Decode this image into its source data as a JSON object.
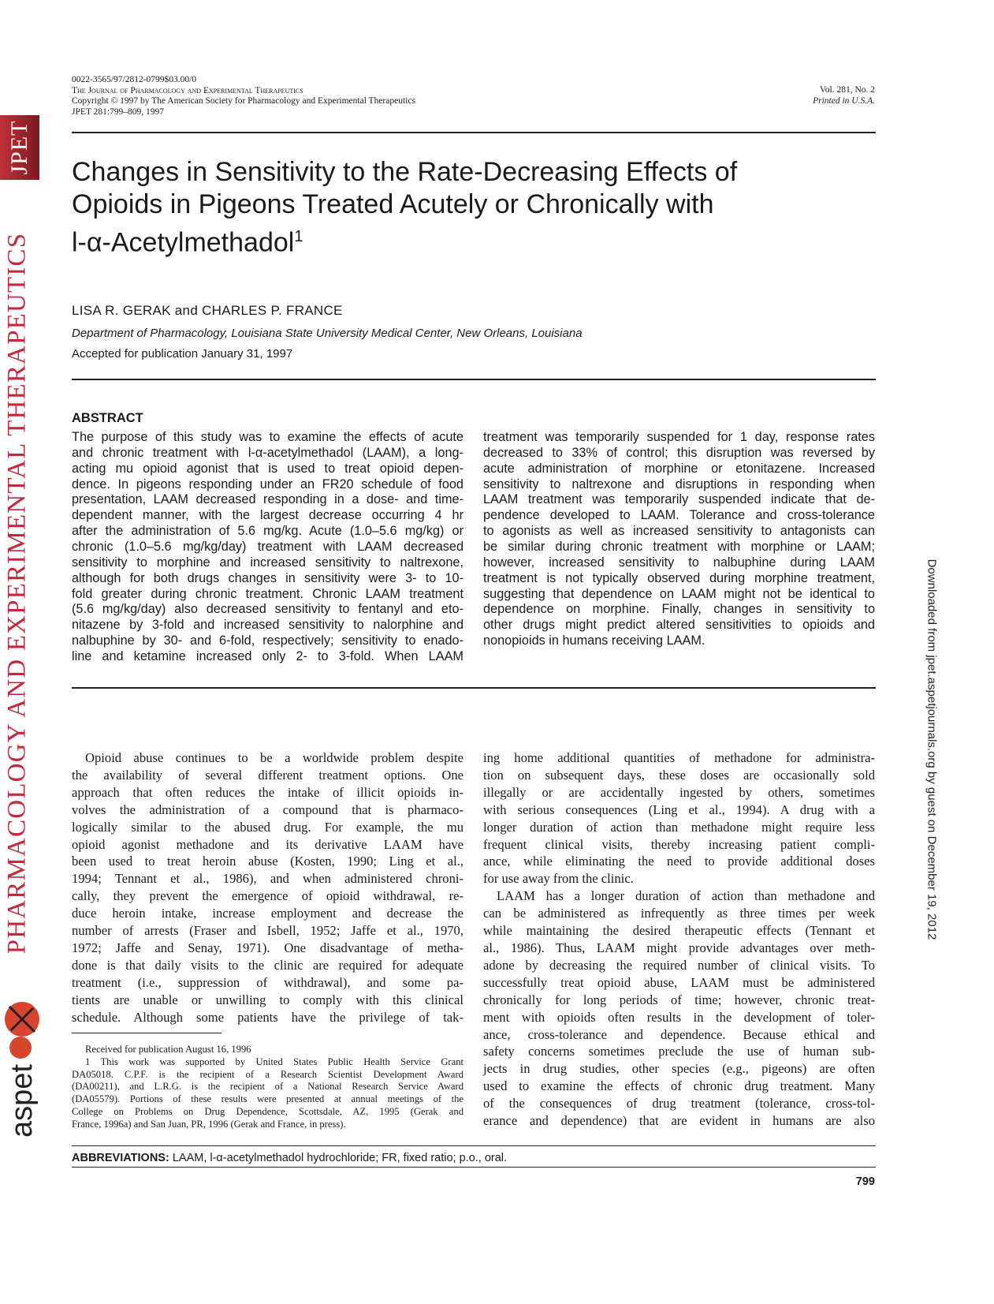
{
  "header": {
    "left_lines": [
      "0022-3565/97/2812-0799$03.00/0",
      "The Journal of Pharmacology and Experimental Therapeutics",
      "Copyright © 1997 by The American Society for Pharmacology and Experimental Therapeutics",
      "JPET 281:799–809, 1997"
    ],
    "volume": "Vol. 281, No. 2",
    "printed": "Printed in U.S.A."
  },
  "sidebar": {
    "jpet_logo": "JPET",
    "journal_name": "PHARMACOLOGY AND EXPERIMENTAL THERAPEUTICS",
    "publisher_logo": "aspet",
    "accent_color": "#c3283d"
  },
  "download_note": "Downloaded from jpet.aspetjournals.org by guest on December 19, 2012",
  "article": {
    "title_lines": [
      "Changes in Sensitivity to the Rate-Decreasing Effects of",
      "Opioids in Pigeons Treated Acutely or Chronically with",
      "l-α-Acetylmethadol"
    ],
    "title_footnote_mark": "1",
    "authors": "LISA R. GERAK and CHARLES P. FRANCE",
    "affiliation": "Department of Pharmacology, Louisiana State University Medical Center, New Orleans, Louisiana",
    "accepted": "Accepted for publication January 31, 1997"
  },
  "abstract": {
    "heading": "ABSTRACT",
    "columns": [
      {
        "continued": false,
        "paragraphs": [
          [
            "The purpose of this study was to examine the effects of acute",
            "and chronic treatment with l-α-acetylmethadol (LAAM), a long-",
            "acting mu opioid agonist that is used to treat opioid depen-",
            "dence. In pigeons responding under an FR20 schedule of food",
            "presentation, LAAM decreased responding in a dose- and time-",
            "dependent manner, with the largest decrease occurring 4 hr",
            "after the administration of 5.6 mg/kg. Acute (1.0–5.6 mg/kg) or",
            "chronic (1.0–5.6 mg/kg/day) treatment with LAAM decreased",
            "sensitivity to morphine and increased sensitivity to naltrexone,",
            "although for both drugs changes in sensitivity were 3- to 10-",
            "fold greater during chronic treatment. Chronic LAAM treatment",
            "(5.6 mg/kg/day) also decreased sensitivity to fentanyl and eto-",
            "nitazene by 3-fold and increased sensitivity to nalorphine and",
            "nalbuphine by 30- and 6-fold, respectively; sensitivity to enado-",
            "line and ketamine increased only 2- to 3-fold. When LAAM"
          ]
        ],
        "ends_mid_paragraph": true
      },
      {
        "continued": true,
        "paragraphs": [
          [
            "treatment was temporarily suspended for 1 day, response rates",
            "decreased to 33% of control; this disruption was reversed by",
            "acute administration of morphine or etonitazene. Increased",
            "sensitivity to naltrexone and disruptions in responding when",
            "LAAM treatment was temporarily suspended indicate that de-",
            "pendence developed to LAAM. Tolerance and cross-tolerance",
            "to agonists as well as increased sensitivity to antagonists can",
            "be similar during chronic treatment with morphine or LAAM;",
            "however, increased sensitivity to nalbuphine during LAAM",
            "treatment is not typically observed during morphine treatment,",
            "suggesting that dependence on LAAM might not be identical to",
            "dependence on morphine. Finally, changes in sensitivity to",
            "other drugs might predict altered sensitivities to opioids and",
            "nonopioids in humans receiving LAAM."
          ]
        ],
        "ends_mid_paragraph": false
      }
    ]
  },
  "body": {
    "columns": [
      {
        "continued": false,
        "ends_mid_paragraph": true,
        "paragraphs": [
          [
            "Opioid abuse continues to be a worldwide problem despite",
            "the availability of several different treatment options. One",
            "approach that often reduces the intake of illicit opioids in-",
            "volves the administration of a compound that is pharmaco-",
            "logically similar to the abused drug. For example, the mu",
            "opioid agonist methadone and its derivative LAAM have",
            "been used to treat heroin abuse (Kosten, 1990; Ling et al.,",
            "1994; Tennant et al., 1986), and when administered chroni-",
            "cally, they prevent the emergence of opioid withdrawal, re-",
            "duce heroin intake, increase employment and decrease the",
            "number of arrests (Fraser and Isbell, 1952; Jaffe et al., 1970,",
            "1972; Jaffe and Senay, 1971). One disadvantage of metha-",
            "done is that daily visits to the clinic are required for adequate",
            "treatment (i.e., suppression of withdrawal), and some pa-",
            "tients are unable or unwilling to comply with this clinical",
            "schedule. Although some patients have the privilege of tak-"
          ]
        ]
      },
      {
        "continued": true,
        "ends_mid_paragraph": true,
        "paragraphs": [
          [
            "ing home additional quantities of methadone for administra-",
            "tion on subsequent days, these doses are occasionally sold",
            "illegally or are accidentally ingested by others, sometimes",
            "with serious consequences (Ling et al., 1994). A drug with a",
            "longer duration of action than methadone might require less",
            "frequent clinical visits, thereby increasing patient compli-",
            "ance, while eliminating the need to provide additional doses",
            "for use away from the clinic."
          ],
          [
            "LAAM has a longer duration of action than methadone and",
            "can be administered as infrequently as three times per week",
            "while maintaining the desired therapeutic effects (Tennant et",
            "al., 1986). Thus, LAAM might provide advantages over meth-",
            "adone by decreasing the required number of clinical visits. To",
            "successfully treat opioid abuse, LAAM must be administered",
            "chronically for long periods of time; however, chronic treat-",
            "ment with opioids often results in the development of toler-",
            "ance, cross-tolerance and dependence. Because ethical and",
            "safety concerns sometimes preclude the use of human sub-",
            "jects in drug studies, other species (e.g., pigeons) are often",
            "used to examine the effects of chronic drug treatment. Many",
            "of the consequences of drug treatment (tolerance, cross-tol-",
            "erance and dependence) that are evident in humans are also"
          ]
        ]
      }
    ]
  },
  "footnotes": {
    "received": "Received for publication August 16, 1996",
    "note1_lines": [
      "1 This work was supported by United States Public Health Service Grant",
      "DA05018. C.P.F. is the recipient of a Research Scientist Development Award",
      "(DA00211), and L.R.G. is the recipient of a National Research Service Award",
      "(DA05579). Portions of these results were presented at annual meetings of the",
      "College on Problems on Drug Dependence, Scottsdale, AZ, 1995 (Gerak and",
      "France, 1996a) and San Juan, PR, 1996 (Gerak and France, in press)."
    ]
  },
  "abbreviations": {
    "label": "ABBREVIATIONS:",
    "text": "LAAM, l-α-acetylmethadol hydrochloride; FR, fixed ratio; p.o., oral."
  },
  "page_number": "799"
}
